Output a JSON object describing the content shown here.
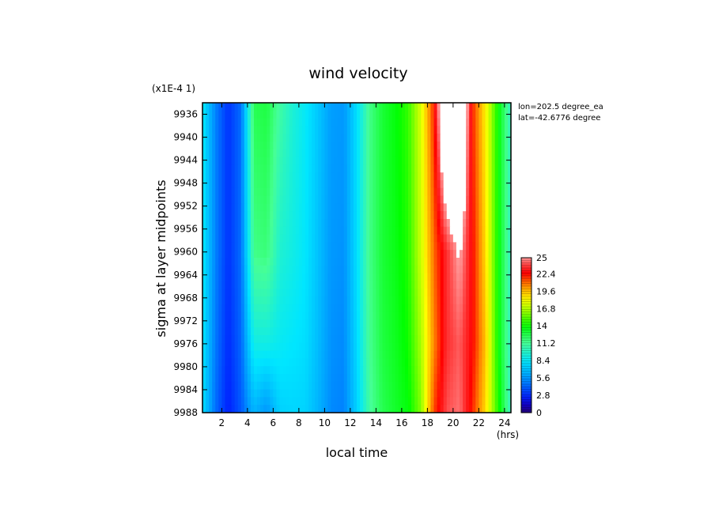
{
  "chart_data": {
    "type": "heatmap",
    "title": "wind velocity",
    "scale_note": "(x1E-4 1)",
    "xlabel": "local time",
    "x_unit": "(hrs)",
    "ylabel": "sigma at layer midpoints",
    "annotations": [
      "lon=202.5 degree_ea",
      "lat=-42.6776 degree"
    ],
    "xlim": [
      0.5,
      24.5
    ],
    "ylim": [
      9934,
      9988
    ],
    "y_inverted": true,
    "x_ticks": [
      "2",
      "4",
      "6",
      "8",
      "10",
      "12",
      "14",
      "16",
      "18",
      "20",
      "22",
      "24"
    ],
    "y_ticks": [
      "9936",
      "9940",
      "9944",
      "9948",
      "9952",
      "9956",
      "9960",
      "9964",
      "9968",
      "9972",
      "9976",
      "9980",
      "9984",
      "9988"
    ],
    "colorbar": {
      "min": 0,
      "max": 25,
      "labels": [
        "25",
        "22.4",
        "19.6",
        "16.8",
        "14",
        "11.2",
        "8.4",
        "5.6",
        "2.8",
        "0"
      ],
      "over_color": "#ffffff"
    },
    "x": [
      0.5,
      1.5,
      2.5,
      3.5,
      4.5,
      5.5,
      6.5,
      7.5,
      8.5,
      9.5,
      10.5,
      11.5,
      12.5,
      13.5,
      14.5,
      15.5,
      16.5,
      17.5,
      18.5,
      19.5,
      20.5,
      21.5,
      22.5,
      23.5,
      24.5
    ],
    "y": [
      9934,
      9960,
      9976,
      9988
    ],
    "z": [
      [
        8.5,
        5.0,
        3.0,
        4.5,
        12.5,
        12.8,
        11.0,
        9.5,
        8.5,
        7.2,
        5.8,
        5.6,
        8.0,
        11.5,
        13.0,
        13.8,
        14.8,
        17.5,
        22.0,
        30.0,
        30.0,
        22.0,
        18.5,
        14.0,
        10.0
      ],
      [
        8.5,
        5.0,
        3.0,
        4.5,
        11.5,
        11.8,
        9.6,
        9.0,
        8.3,
        7.0,
        5.6,
        5.4,
        8.0,
        11.5,
        13.0,
        13.6,
        14.5,
        17.2,
        21.0,
        23.5,
        25.3,
        22.5,
        19.0,
        14.0,
        10.0
      ],
      [
        8.3,
        4.8,
        2.8,
        4.3,
        9.0,
        9.0,
        8.6,
        8.3,
        8.0,
        6.8,
        5.4,
        5.2,
        7.8,
        11.3,
        12.8,
        13.4,
        14.2,
        16.6,
        20.5,
        23.5,
        24.2,
        22.5,
        19.5,
        14.0,
        10.0
      ],
      [
        8.0,
        4.5,
        2.5,
        4.0,
        6.5,
        5.5,
        7.5,
        7.7,
        7.6,
        6.5,
        5.2,
        5.0,
        7.5,
        11.0,
        12.5,
        13.2,
        13.8,
        16.0,
        21.5,
        24.0,
        24.5,
        22.0,
        19.0,
        14.5,
        10.0
      ]
    ]
  }
}
